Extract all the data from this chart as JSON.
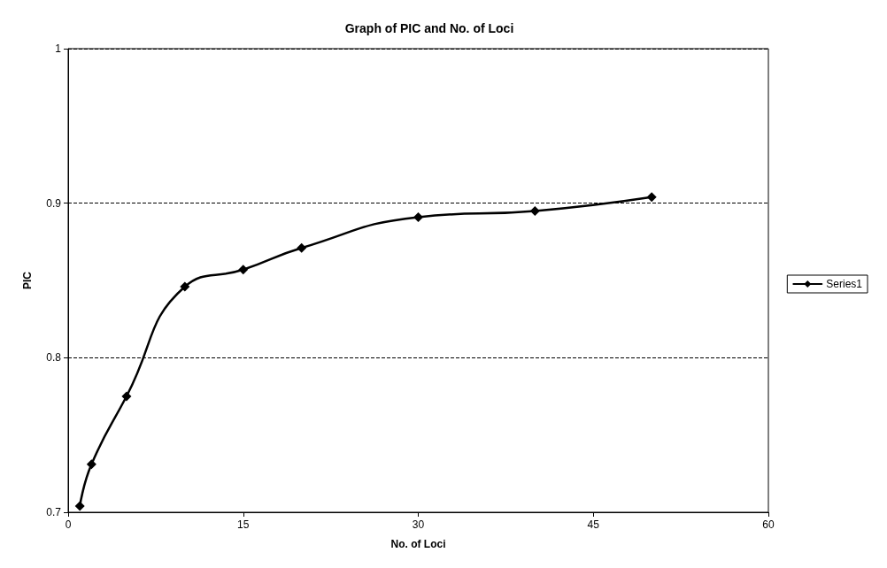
{
  "chart_data": {
    "type": "line",
    "title": "Graph of PIC and No. of Loci",
    "xlabel": "No. of Loci",
    "ylabel": "PIC",
    "x": [
      1,
      2,
      5,
      10,
      15,
      20,
      30,
      40,
      50
    ],
    "series": [
      {
        "name": "Series1",
        "color": "#000000",
        "values": [
          0.704,
          0.731,
          0.775,
          0.846,
          0.857,
          0.871,
          0.891,
          0.895,
          0.904
        ]
      }
    ],
    "xlim": [
      0,
      60
    ],
    "xticks": [
      0,
      15,
      30,
      45,
      60
    ],
    "ylim": [
      0.7,
      1
    ],
    "yticks": [
      0.7,
      0.8,
      0.9,
      1
    ],
    "grid": "y",
    "legend": "right",
    "marker": "diamond",
    "line_style": "solid"
  }
}
